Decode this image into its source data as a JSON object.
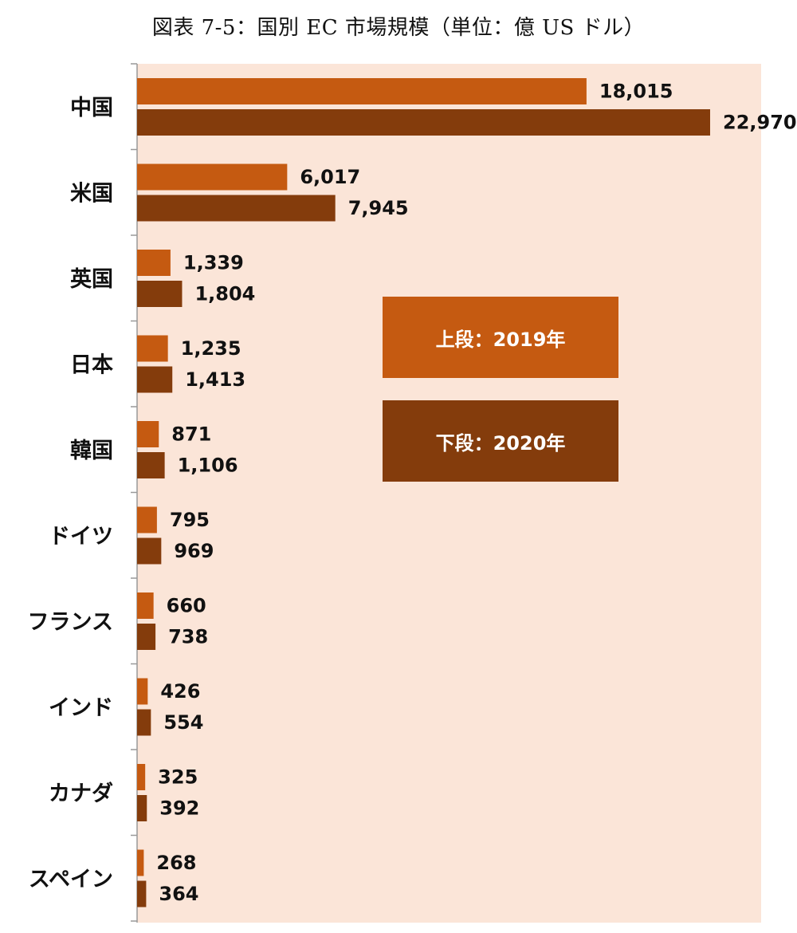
{
  "colors": {
    "plot_bg": "#fbe5d8",
    "series_2019": "#c55a11",
    "series_2020": "#843c0c",
    "axis": "#999999"
  },
  "chart_data": {
    "type": "bar",
    "orientation": "horizontal",
    "title": "図表 7-5：国別 EC 市場規模（単位：億 US ドル）",
    "categories": [
      "中国",
      "米国",
      "英国",
      "日本",
      "韓国",
      "ドイツ",
      "フランス",
      "インド",
      "カナダ",
      "スペイン"
    ],
    "series": [
      {
        "name": "上段：2019年",
        "values": [
          18015,
          6017,
          1339,
          1235,
          871,
          795,
          660,
          426,
          325,
          268
        ],
        "labels": [
          "18,015",
          "6,017",
          "1,339",
          "1,235",
          "871",
          "795",
          "660",
          "426",
          "325",
          "268"
        ]
      },
      {
        "name": "下段：2020年",
        "values": [
          22970,
          7945,
          1804,
          1413,
          1106,
          969,
          738,
          554,
          392,
          364
        ],
        "labels": [
          "22,970",
          "7,945",
          "1,804",
          "1,413",
          "1,106",
          "969",
          "738",
          "554",
          "392",
          "364"
        ]
      }
    ],
    "xlim": [
      0,
      22970
    ],
    "grid": false,
    "legend_position": "center-right"
  }
}
